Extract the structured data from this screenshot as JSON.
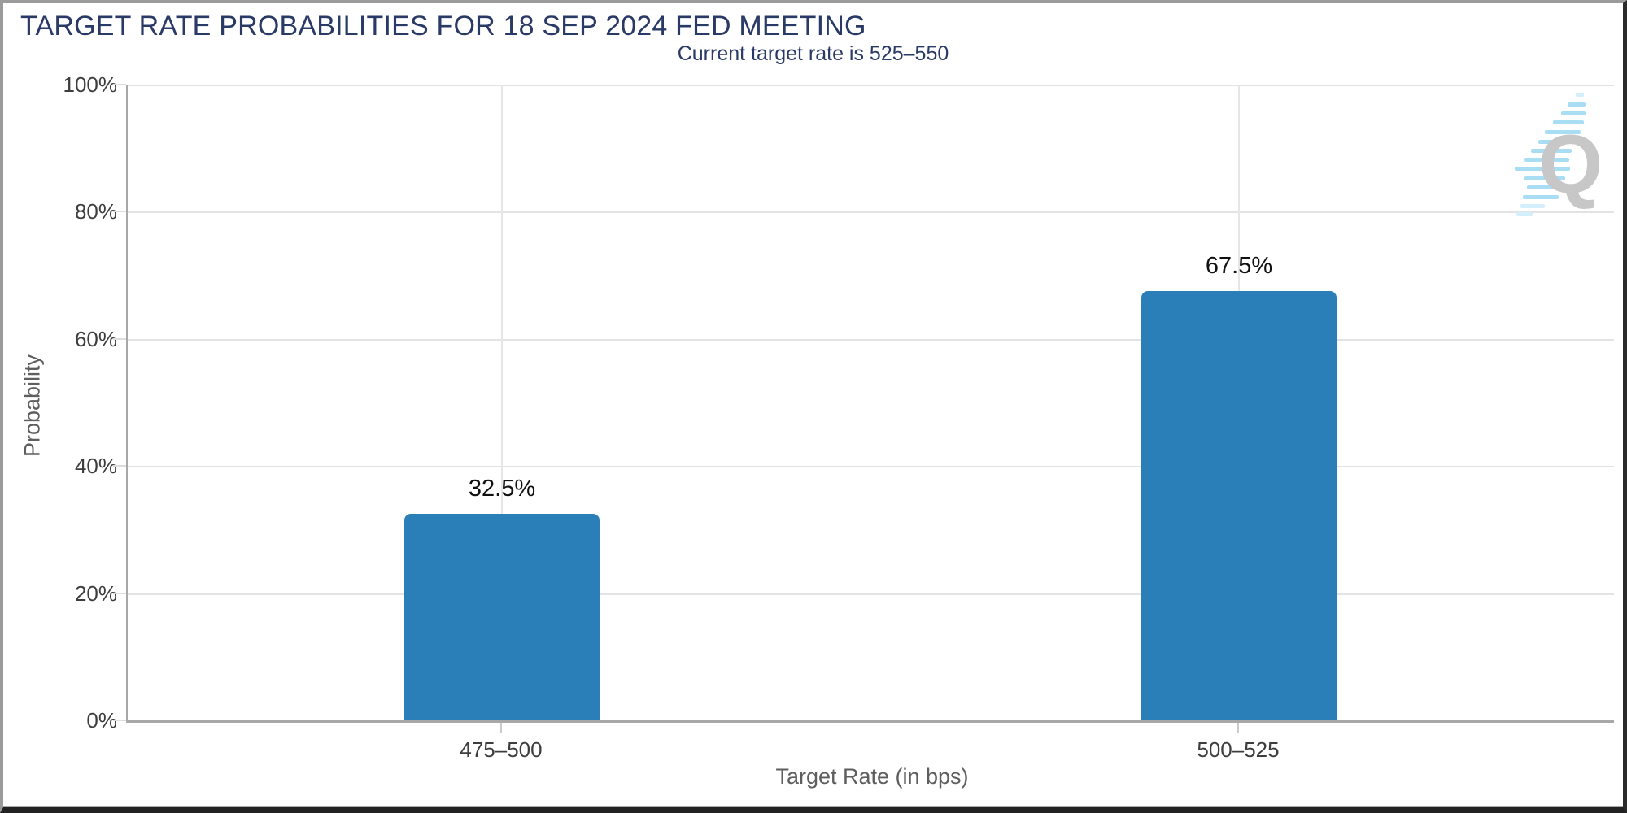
{
  "chart_data": {
    "type": "bar",
    "title": "TARGET RATE PROBABILITIES FOR 18 SEP 2024 FED MEETING",
    "subtitle": "Current target rate is 525–550",
    "categories": [
      "475–500",
      "500–525"
    ],
    "values": [
      32.5,
      67.5
    ],
    "value_labels": [
      "32.5%",
      "67.5%"
    ],
    "xlabel": "Target Rate (in bps)",
    "ylabel": "Probability",
    "ylim": [
      0,
      100
    ],
    "yticks": [
      "0%",
      "20%",
      "40%",
      "60%",
      "80%",
      "100%"
    ],
    "grid": true,
    "legend": false,
    "bar_color": "#2a7fb8",
    "title_color": "#2a3a66",
    "axis_text_color": "#3d3d3d"
  },
  "watermark": {
    "letter": "Q"
  }
}
